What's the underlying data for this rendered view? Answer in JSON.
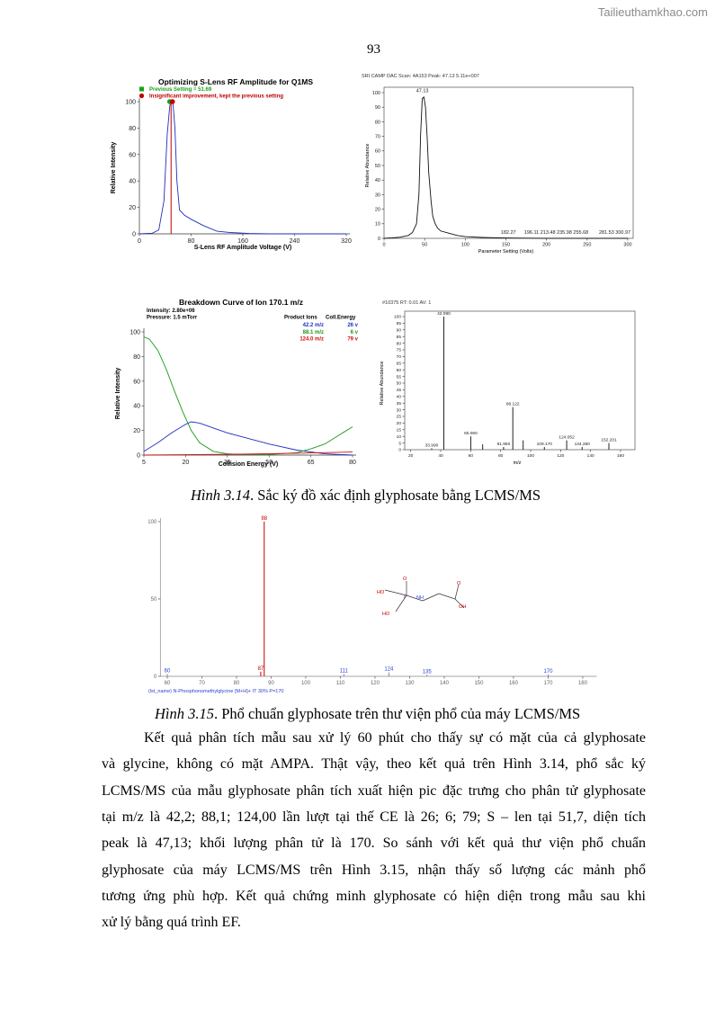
{
  "watermark": "Tailieuthamkhao.com",
  "page_number": "93",
  "figure_3_14": {
    "panels": [
      {
        "type": "line",
        "title": "Optimizing S-Lens RF Amplitude for Q1MS",
        "notes": [
          {
            "text": "Previous Setting = 51.69",
            "color": "#1aa01a"
          },
          {
            "text": "Insignificant improvement, kept the previous setting",
            "color": "#c00000"
          }
        ],
        "xlabel": "S-Lens RF Amplitude Voltage (V)",
        "ylabel": "Relative Intensity",
        "xlim": [
          0,
          320
        ],
        "ylim": [
          0,
          100
        ],
        "xticks": [
          0,
          80,
          160,
          240,
          320
        ],
        "yticks": [
          0,
          20,
          40,
          60,
          80,
          100
        ],
        "marker": {
          "x": 49,
          "y": 100,
          "color": "#c00000"
        },
        "series": [
          {
            "color": "#1f2fbf",
            "x": [
              0,
              20,
              30,
              38,
              43,
              47,
              50,
              52,
              55,
              58,
              62,
              70,
              80,
              100,
              120,
              140,
              170,
              200,
              320
            ],
            "values": [
              0,
              0.5,
              3,
              25,
              75,
              97,
              100,
              98,
              80,
              40,
              18,
              14,
              11,
              6,
              2,
              1,
              0.3,
              0,
              0
            ]
          }
        ]
      },
      {
        "type": "line",
        "header": "SRI CAMP DAC Scan: 4A153     Peak: 47.13     5.11e+007",
        "xlabel": "Parameter Setting (Volts)",
        "ylabel": "Relative Abundance",
        "xlim": [
          0,
          300
        ],
        "ylim": [
          0,
          100
        ],
        "xticks": [
          0,
          50,
          100,
          150,
          200,
          250,
          300
        ],
        "yticks": [
          0,
          10,
          20,
          30,
          40,
          50,
          60,
          70,
          80,
          90,
          100
        ],
        "annotations": [
          {
            "text": "47.13",
            "x": 47.13,
            "y": 99
          },
          {
            "text": "182.27",
            "x": 153,
            "y": 2
          },
          {
            "text": "196.11  213.48  235.98  255.68",
            "x": 212,
            "y": 2
          },
          {
            "text": "281.53  300.97",
            "x": 284,
            "y": 2
          }
        ],
        "series": [
          {
            "color": "#111111",
            "x": [
              0,
              10,
              20,
              30,
              35,
              40,
              43,
              45,
              47,
              49,
              51,
              53,
              55,
              58,
              60,
              63,
              66,
              70,
              80,
              90,
              100,
              120,
              140,
              160,
              180,
              200,
              250,
              300
            ],
            "values": [
              0,
              0.3,
              0.8,
              2,
              4,
              10,
              30,
              70,
              96,
              97,
              90,
              70,
              45,
              25,
              15,
              10,
              7,
              5,
              3.5,
              2,
              1.2,
              0.6,
              0.3,
              0.2,
              0.1,
              0,
              0,
              0
            ]
          }
        ]
      },
      {
        "type": "line",
        "title": "Breakdown Curve of Ion 170.1 m/z",
        "info": [
          "Intensity: 2.80e+06",
          "Pressure: 1.5 mTorr"
        ],
        "table_header": [
          "Product Ions",
          "Coll.Energy"
        ],
        "xlabel": "Collision Energy (V)",
        "ylabel": "Relative Intensity",
        "xlim": [
          5,
          80
        ],
        "ylim": [
          0,
          100
        ],
        "xticks": [
          5,
          20,
          35,
          50,
          65,
          80
        ],
        "yticks": [
          0,
          20,
          40,
          60,
          80,
          100
        ],
        "series": [
          {
            "name": "42.2 m/z",
            "energy": "26 v",
            "color": "#2030c0",
            "x": [
              5,
              10,
              15,
              20,
              22,
              25,
              30,
              35,
              40,
              50,
              60,
              70,
              80
            ],
            "values": [
              3,
              10,
              18,
              25,
              27,
              26,
              22,
              18,
              15,
              9,
              4,
              1,
              0
            ]
          },
          {
            "name": "88.1 m/z",
            "energy": "6 v",
            "color": "#1a9a1a",
            "x": [
              5,
              7,
              10,
              13,
              16,
              19,
              22,
              25,
              30,
              35,
              40,
              50,
              60,
              65,
              70,
              75,
              80
            ],
            "values": [
              96,
              94,
              85,
              70,
              52,
              35,
              20,
              10,
              3,
              1,
              0.5,
              0.5,
              2,
              5,
              9,
              16,
              23
            ]
          },
          {
            "name": "124.0 m/z",
            "energy": "79 v",
            "color": "#d01010",
            "x": [
              5,
              20,
              40,
              60,
              80
            ],
            "values": [
              0,
              0.3,
              0.8,
              1.5,
              2.5
            ]
          }
        ]
      },
      {
        "type": "stick",
        "header": "#10375 RT: 0.01 AV: 1",
        "xlabel": "m/z",
        "ylabel": "Relative Abundance",
        "xlim": [
          16,
          166
        ],
        "ylim": [
          0,
          100
        ],
        "xticks": [
          20,
          40,
          60,
          80,
          100,
          120,
          140,
          160
        ],
        "yticks": [
          0,
          5,
          10,
          15,
          20,
          25,
          30,
          35,
          40,
          45,
          50,
          55,
          60,
          65,
          70,
          75,
          80,
          85,
          90,
          95,
          100
        ],
        "series": [
          {
            "color": "#222222",
            "x": [
              33.99,
              42.09,
              60.06,
              68,
              81.95,
              88.122,
              95,
              109.17,
              124.052,
              134.35,
              152.201
            ],
            "values": [
              1,
              100,
              10,
              4,
              2,
              32,
              7,
              2,
              7,
              2,
              5
            ],
            "labels": [
              "33.990",
              "42.090",
              "60.060",
              null,
              "81.950",
              "88.122",
              null,
              "109.170",
              "124.052",
              "134.350",
              "152.201"
            ]
          }
        ]
      }
    ],
    "caption": {
      "label": "Hình 3.14",
      "text": ". Sắc ký đồ xác định glyphosate bằng LCMS/MS"
    }
  },
  "figure_3_15": {
    "chart": {
      "type": "stick",
      "xlim": [
        58,
        183
      ],
      "ylim": [
        0,
        100
      ],
      "xticks": [
        60,
        70,
        80,
        90,
        100,
        110,
        120,
        130,
        140,
        150,
        160,
        170,
        180
      ],
      "yticks": [
        0,
        50,
        100
      ],
      "series": [
        {
          "color": "#888888",
          "colors": [
            "#888888",
            "#c00000",
            "#c00000",
            "#888888",
            "#888888",
            "#888888",
            "#888888"
          ],
          "label_color": "#2a3fd0",
          "x": [
            60,
            87,
            88,
            111,
            124,
            135,
            170
          ],
          "values": [
            1.5,
            3,
            100,
            1.5,
            2.5,
            1,
            1.2
          ],
          "labels": [
            "60",
            "87",
            "88",
            "111",
            "124",
            "135",
            "170"
          ]
        }
      ]
    },
    "footer": "(lst_name) N-Phosphonomethylglycine [M+H]+ IT 30% P=170",
    "molecule": [
      "HO",
      "P",
      "O",
      "HO",
      "NH",
      "O",
      "OH"
    ],
    "caption": {
      "label": "Hình 3.15",
      "text": ". Phổ chuẩn glyphosate trên thư viện phổ của máy LCMS/MS"
    }
  },
  "paragraph": [
    "Kết quả phân tích mẫu sau xử lý 60 phút cho thấy sự có mặt của cả glyphosate",
    "và glycine, không có mặt AMPA. Thật vậy, theo kết quả trên Hình 3.14, phổ sắc ký",
    "LCMS/MS của mẫu glyphosate phân tích xuất hiện pic đặc trưng cho phân tử glyphosate",
    "tại m/z là 42,2; 88,1; 124,00 lần lượt tại thế CE là 26; 6; 79; S – len tại 51,7, diện tích",
    "peak là 47,13; khối lượng phân tử là 170. So sánh với kết quả thư viện phổ chuẩn",
    "glyphosate của máy LCMS/MS trên Hình 3.15, nhận thấy số lượng các mảnh phổ",
    "tương ứng phù hợp. Kết quả chứng minh glyphosate có hiện diện trong mẫu sau khi",
    "xử lý bằng quá trình EF."
  ]
}
